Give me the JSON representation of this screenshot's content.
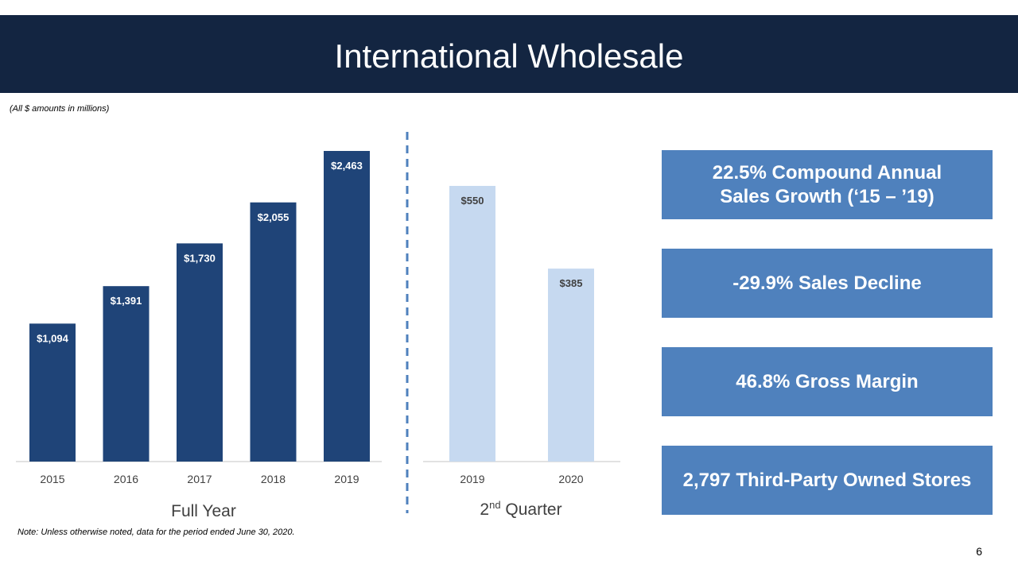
{
  "header": {
    "title": "International Wholesale"
  },
  "units_note": "(All $ amounts in millions)",
  "chart_data": [
    {
      "type": "bar",
      "group_label": "Full Year",
      "categories": [
        "2015",
        "2016",
        "2017",
        "2018",
        "2019"
      ],
      "values": [
        1094,
        1391,
        1730,
        2055,
        2463
      ],
      "data_labels": [
        "$1,094",
        "$1,391",
        "$1,730",
        "$2,055",
        "$2,463"
      ],
      "bar_color": "#1f4478",
      "label_color": "#ffffff",
      "ylim": [
        0,
        2463
      ]
    },
    {
      "type": "bar",
      "group_label_main": "2",
      "group_label_sup": "nd",
      "group_label_rest": " Quarter",
      "categories": [
        "2019",
        "2020"
      ],
      "values": [
        550,
        385
      ],
      "data_labels": [
        "$550",
        "$385"
      ],
      "bar_color": "#c6d9f0",
      "label_color": "#404040",
      "ylim": [
        0,
        550
      ]
    }
  ],
  "callouts": [
    "22.5% Compound Annual Sales Growth (‘15 – ’19)",
    "-29.9% Sales Decline",
    "46.8% Gross Margin",
    "2,797 Third-Party Owned Stores"
  ],
  "colors": {
    "header_bg": "#132541",
    "callout_bg": "#4f81bd",
    "divider": "#4f81bd"
  },
  "footer": {
    "note": "Note: Unless otherwise noted, data for the period ended June 30, 2020.",
    "page_number": "6"
  }
}
